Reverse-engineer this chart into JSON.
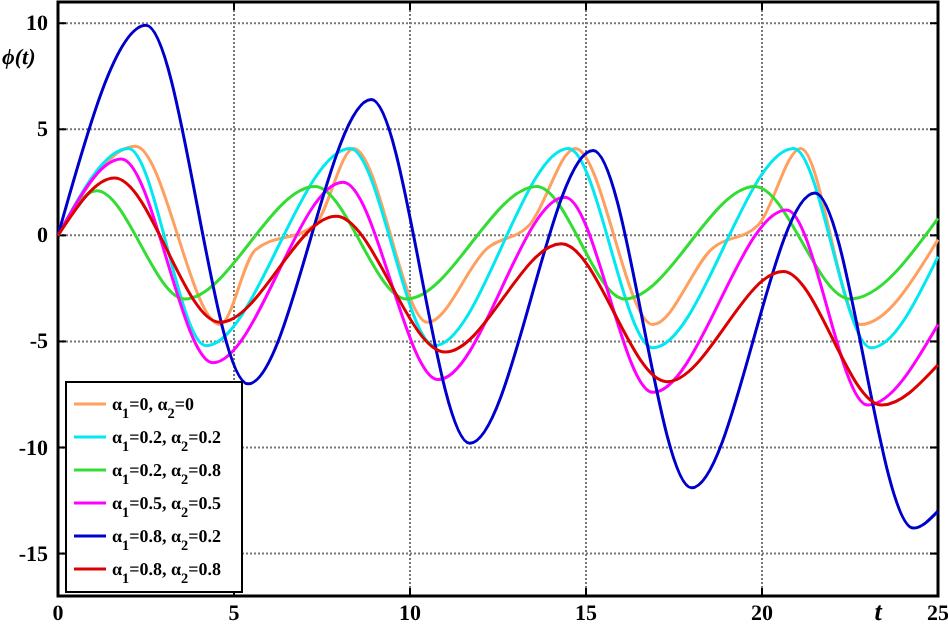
{
  "chart_data": {
    "type": "line",
    "ylabel": "ϕ(t)",
    "xlabel": "t",
    "xlim": [
      0,
      25
    ],
    "xticks": [
      0,
      5,
      10,
      15,
      20,
      25
    ],
    "ylim": [
      -17,
      11
    ],
    "yticks": [
      -15,
      -10,
      -5,
      0,
      5,
      10
    ],
    "grid": true,
    "legend": "bottom left",
    "marker": "none",
    "line_style": "solid",
    "series": [
      {
        "name": "α$_{1}$=0, α$_{2}$=0",
        "color": "#ffa060",
        "x": [
          0,
          2.2,
          4.6,
          5.6,
          7.3,
          8.4,
          10.5,
          12.2,
          13.4,
          14.7,
          16.9,
          18.6,
          19.9,
          21.1,
          22.8,
          25
        ],
        "values": [
          0,
          4.2,
          -4.2,
          -0.7,
          0.5,
          4.1,
          -4.1,
          -0.6,
          0.5,
          4.1,
          -4.2,
          -0.6,
          0.5,
          4.1,
          -4.2,
          -0.2
        ]
      },
      {
        "name": "α$_{1}$=0.2, α$_{2}$=0.2",
        "color": "#00e8f0",
        "x": [
          0,
          2.0,
          4.2,
          8.3,
          10.7,
          14.5,
          16.9,
          20.9,
          23.1,
          25
        ],
        "values": [
          0,
          4.1,
          -5.2,
          4.1,
          -5.2,
          4.1,
          -5.3,
          4.1,
          -5.3,
          -1.0
        ]
      },
      {
        "name": "α$_{1}$=0.2, α$_{2}$=0.8",
        "color": "#33dd33",
        "x": [
          0,
          1.1,
          3.6,
          7.3,
          9.9,
          13.6,
          16.1,
          19.8,
          22.5,
          25
        ],
        "values": [
          0,
          2.1,
          -3.0,
          2.3,
          -3.0,
          2.3,
          -3.0,
          2.3,
          -3.0,
          0.8
        ]
      },
      {
        "name": "α$_{1}$=0.5, α$_{2}$=0.5",
        "color": "#ff00ff",
        "x": [
          0,
          1.8,
          4.4,
          8.1,
          10.8,
          14.4,
          16.9,
          20.7,
          23.0,
          25
        ],
        "values": [
          0,
          3.6,
          -6.0,
          2.5,
          -6.8,
          1.8,
          -7.4,
          1.2,
          -8.0,
          -4.2
        ]
      },
      {
        "name": "α$_{1}$=0.8, α$_{2}$=0.2",
        "color": "#0000cc",
        "x": [
          0,
          2.5,
          5.4,
          8.9,
          11.7,
          15.2,
          18.0,
          21.5,
          24.3,
          25
        ],
        "values": [
          0,
          9.9,
          -7.0,
          6.4,
          -9.8,
          4.0,
          -11.9,
          2.0,
          -13.8,
          -13.0
        ]
      },
      {
        "name": "α$_{1}$=0.8, α$_{2}$=0.8",
        "color": "#dd0000",
        "x": [
          0,
          1.6,
          4.6,
          7.9,
          11.0,
          14.3,
          17.3,
          20.6,
          23.4,
          25
        ],
        "values": [
          0,
          2.7,
          -4.1,
          0.9,
          -5.5,
          -0.4,
          -6.9,
          -1.7,
          -8.0,
          -6.1
        ]
      }
    ]
  }
}
